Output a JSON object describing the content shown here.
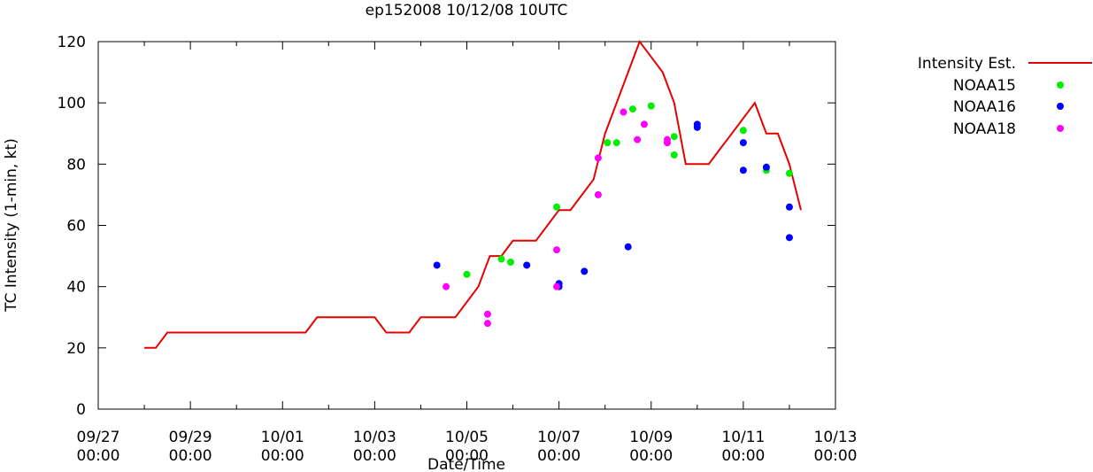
{
  "chart_data": {
    "type": "line",
    "title": "ep152008 10/12/08 10UTC",
    "xlabel": "Date/Time",
    "ylabel": "TC Intensity (1-min, kt)",
    "ylim": [
      0,
      120
    ],
    "yticks": [
      0,
      20,
      40,
      60,
      80,
      100,
      120
    ],
    "xlim": [
      "09/27 00:00",
      "10/13 00:00"
    ],
    "xticks": [
      {
        "x": 0,
        "date": "09/27",
        "time": "00:00"
      },
      {
        "x": 2,
        "date": "09/29",
        "time": "00:00"
      },
      {
        "x": 4,
        "date": "10/01",
        "time": "00:00"
      },
      {
        "x": 6,
        "date": "10/03",
        "time": "00:00"
      },
      {
        "x": 8,
        "date": "10/05",
        "time": "00:00"
      },
      {
        "x": 10,
        "date": "10/07",
        "time": "00:00"
      },
      {
        "x": 12,
        "date": "10/09",
        "time": "00:00"
      },
      {
        "x": 14,
        "date": "10/11",
        "time": "00:00"
      },
      {
        "x": 16,
        "date": "10/13",
        "time": "00:00"
      }
    ],
    "legend_position": "top-right, outside plot",
    "series": [
      {
        "name": "Intensity Est.",
        "kind": "line",
        "color": "#e60000",
        "points": [
          [
            1.0,
            20
          ],
          [
            1.25,
            20
          ],
          [
            1.5,
            25
          ],
          [
            4.5,
            25
          ],
          [
            4.75,
            30
          ],
          [
            6.0,
            30
          ],
          [
            6.25,
            25
          ],
          [
            6.75,
            25
          ],
          [
            7.0,
            30
          ],
          [
            7.75,
            30
          ],
          [
            8.0,
            35
          ],
          [
            8.25,
            40
          ],
          [
            8.5,
            50
          ],
          [
            8.75,
            50
          ],
          [
            9.0,
            55
          ],
          [
            9.5,
            55
          ],
          [
            9.75,
            60
          ],
          [
            10.0,
            65
          ],
          [
            10.25,
            65
          ],
          [
            10.5,
            70
          ],
          [
            10.75,
            75
          ],
          [
            11.0,
            90
          ],
          [
            11.25,
            100
          ],
          [
            11.5,
            110
          ],
          [
            11.75,
            120
          ],
          [
            12.0,
            115
          ],
          [
            12.25,
            110
          ],
          [
            12.5,
            100
          ],
          [
            12.75,
            80
          ],
          [
            13.0,
            80
          ],
          [
            13.25,
            80
          ],
          [
            13.5,
            85
          ],
          [
            13.75,
            90
          ],
          [
            14.0,
            95
          ],
          [
            14.25,
            100
          ],
          [
            14.5,
            90
          ],
          [
            14.75,
            90
          ],
          [
            15.0,
            80
          ],
          [
            15.25,
            65
          ]
        ]
      },
      {
        "name": "NOAA15",
        "kind": "scatter",
        "color": "#00ee00",
        "points": [
          [
            8.0,
            44
          ],
          [
            8.75,
            49
          ],
          [
            8.95,
            48
          ],
          [
            9.95,
            66
          ],
          [
            11.05,
            87
          ],
          [
            11.25,
            87
          ],
          [
            11.6,
            98
          ],
          [
            12.0,
            99
          ],
          [
            12.5,
            89
          ],
          [
            12.5,
            83
          ],
          [
            14.0,
            91
          ],
          [
            14.5,
            78
          ],
          [
            15.0,
            77
          ]
        ]
      },
      {
        "name": "NOAA16",
        "kind": "scatter",
        "color": "#0000ff",
        "points": [
          [
            7.35,
            47
          ],
          [
            9.3,
            47
          ],
          [
            10.0,
            41
          ],
          [
            10.0,
            40
          ],
          [
            10.55,
            45
          ],
          [
            11.5,
            53
          ],
          [
            13.0,
            93
          ],
          [
            13.0,
            92
          ],
          [
            14.0,
            87
          ],
          [
            14.0,
            78
          ],
          [
            14.5,
            79
          ],
          [
            15.0,
            66
          ],
          [
            15.0,
            56
          ]
        ]
      },
      {
        "name": "NOAA18",
        "kind": "scatter",
        "color": "#ff00ff",
        "points": [
          [
            7.55,
            40
          ],
          [
            8.45,
            31
          ],
          [
            8.45,
            28
          ],
          [
            9.95,
            52
          ],
          [
            9.95,
            40
          ],
          [
            10.85,
            82
          ],
          [
            10.85,
            70
          ],
          [
            11.4,
            97
          ],
          [
            11.7,
            88
          ],
          [
            11.85,
            93
          ],
          [
            12.35,
            88
          ],
          [
            12.35,
            87
          ]
        ]
      }
    ]
  }
}
